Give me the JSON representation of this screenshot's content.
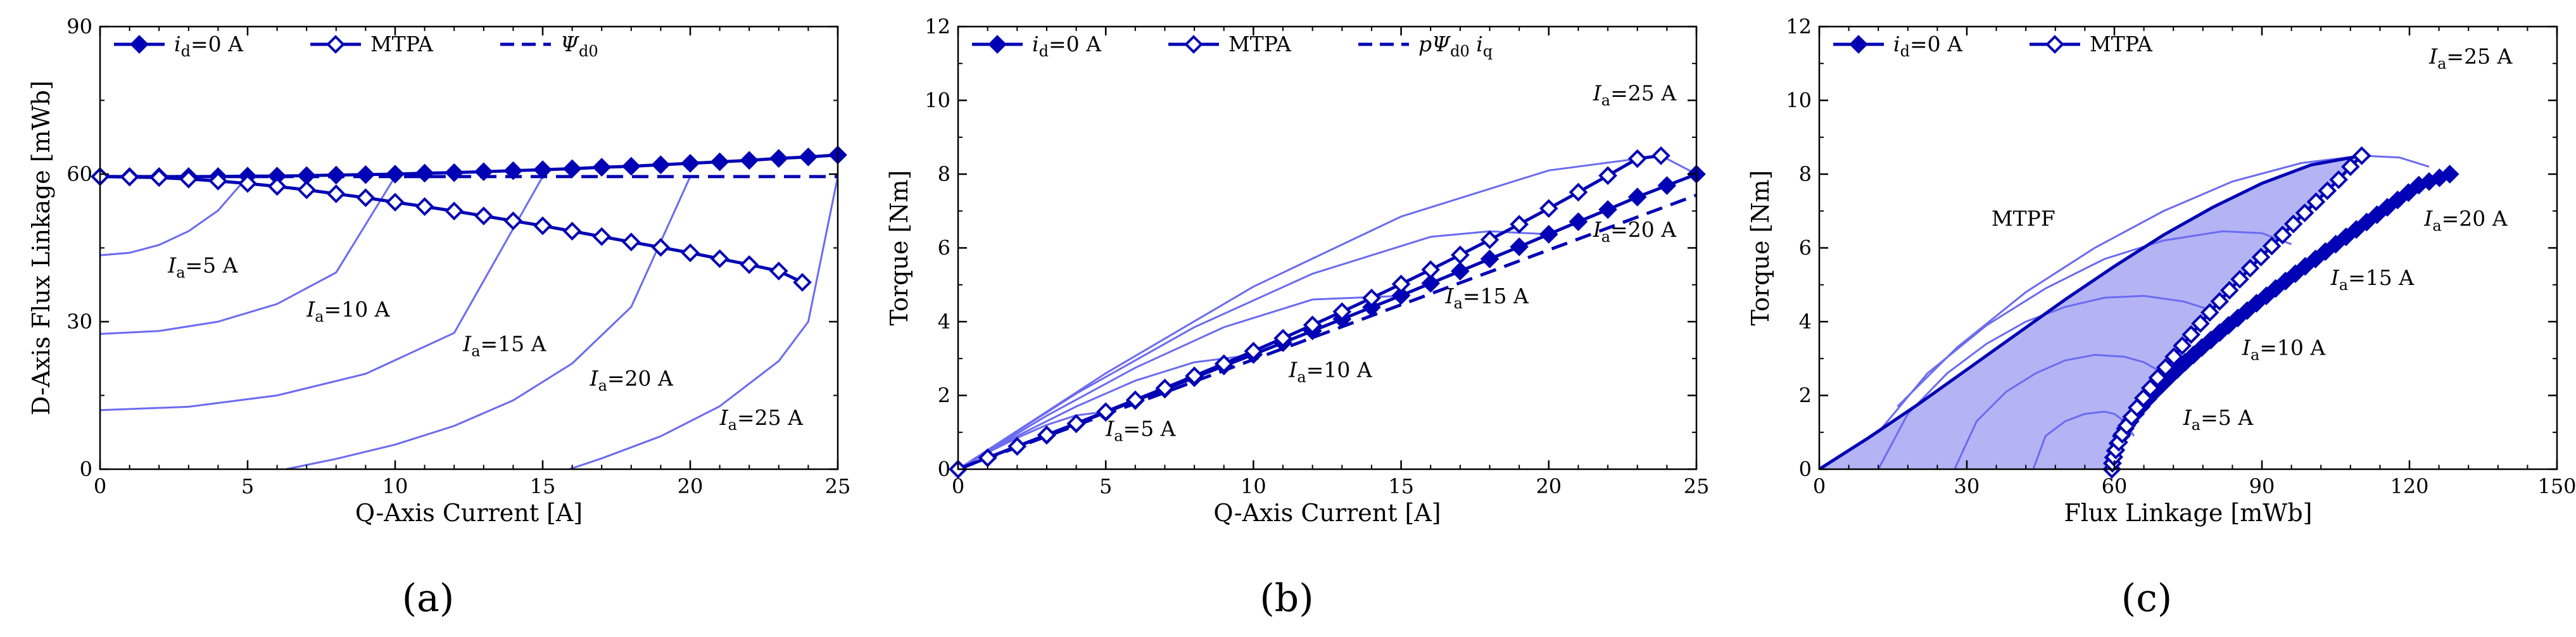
{
  "colors": {
    "main": "#0000b4",
    "light": "#6b6bf0",
    "fill": "#b4b4f5",
    "axis": "#000000"
  },
  "chart_data": [
    {
      "id": "a",
      "type": "line",
      "panel_label": "(a)",
      "xlabel": "Q-Axis Current [A]",
      "ylabel": "D-Axis Flux Linkage [mWb]",
      "xlim": [
        0,
        25
      ],
      "ylim": [
        0,
        90
      ],
      "xticks": [
        0,
        5,
        10,
        15,
        20,
        25
      ],
      "yticks": [
        0,
        30,
        60,
        90
      ],
      "legend": [
        "i_d=0 A",
        "MTPA",
        "Ψ_d0"
      ],
      "series": [
        {
          "name": "i_d=0 A",
          "style": "solid-filled-diamond",
          "x": [
            0,
            1,
            2,
            3,
            4,
            5,
            6,
            7,
            8,
            9,
            10,
            11,
            12,
            13,
            14,
            15,
            16,
            17,
            18,
            19,
            20,
            21,
            22,
            23,
            24,
            25
          ],
          "y": [
            59.5,
            59.5,
            59.5,
            59.5,
            59.5,
            59.6,
            59.6,
            59.7,
            59.8,
            59.9,
            60.0,
            60.2,
            60.3,
            60.5,
            60.7,
            60.9,
            61.1,
            61.4,
            61.6,
            61.9,
            62.2,
            62.5,
            62.8,
            63.2,
            63.5,
            63.9
          ]
        },
        {
          "name": "MTPA",
          "style": "solid-open-diamond",
          "x": [
            0,
            1,
            2,
            3,
            4,
            5,
            6,
            7,
            8,
            9,
            10,
            11,
            12,
            13,
            14,
            15,
            16,
            17,
            18,
            19,
            20,
            21,
            22,
            23,
            23.8
          ],
          "y": [
            59.5,
            59.4,
            59.3,
            59.0,
            58.6,
            58.1,
            57.5,
            56.8,
            56.0,
            55.2,
            54.3,
            53.4,
            52.5,
            51.5,
            50.5,
            49.5,
            48.4,
            47.3,
            46.2,
            45.1,
            44.0,
            42.8,
            41.6,
            40.3,
            38.0
          ]
        },
        {
          "name": "Ψ_d0",
          "style": "dashed",
          "x": [
            0,
            25
          ],
          "y": [
            59.5,
            59.5
          ]
        },
        {
          "name": "I_a=5 A",
          "style": "thin",
          "x": [
            0,
            1,
            2,
            3,
            4,
            5
          ],
          "y": [
            43.5,
            44.0,
            45.6,
            48.4,
            52.6,
            59.5
          ]
        },
        {
          "name": "I_a=10 A",
          "style": "thin",
          "x": [
            0,
            2,
            4,
            6,
            8,
            10
          ],
          "y": [
            27.5,
            28.1,
            30.0,
            33.6,
            40.0,
            59.5
          ]
        },
        {
          "name": "I_a=15 A",
          "style": "thin",
          "x": [
            0,
            3,
            6,
            9,
            12,
            15
          ],
          "y": [
            12.0,
            12.7,
            15.0,
            19.4,
            27.7,
            59.5
          ]
        },
        {
          "name": "I_a=20 A",
          "style": "thin",
          "x": [
            6.3,
            8,
            10,
            12,
            14,
            16,
            18,
            20
          ],
          "y": [
            0,
            2.1,
            5.0,
            8.8,
            14.0,
            21.5,
            33.0,
            59.5
          ]
        },
        {
          "name": "I_a=25 A",
          "style": "thin",
          "x": [
            15.9,
            17,
            19,
            21,
            23,
            24,
            25
          ],
          "y": [
            0,
            2.2,
            6.7,
            12.8,
            22.0,
            30.0,
            59.5
          ]
        }
      ],
      "annotations": [
        {
          "label": "I_a=5 A",
          "x": 2.3,
          "y": 40
        },
        {
          "label": "I_a=10 A",
          "x": 7.0,
          "y": 31
        },
        {
          "label": "I_a=15 A",
          "x": 12.3,
          "y": 24
        },
        {
          "label": "I_a=20 A",
          "x": 16.6,
          "y": 17
        },
        {
          "label": "I_a=25 A",
          "x": 21.0,
          "y": 9
        }
      ]
    },
    {
      "id": "b",
      "type": "line",
      "panel_label": "(b)",
      "xlabel": "Q-Axis Current [A]",
      "ylabel": "Torque [Nm]",
      "xlim": [
        0,
        25
      ],
      "ylim": [
        0,
        12
      ],
      "xticks": [
        0,
        5,
        10,
        15,
        20,
        25
      ],
      "yticks": [
        0,
        2,
        4,
        6,
        8,
        10,
        12
      ],
      "legend": [
        "i_d=0 A",
        "MTPA",
        "pΨ_d0 i_q"
      ],
      "series": [
        {
          "name": "i_d=0 A",
          "style": "solid-filled-diamond",
          "x": [
            0,
            1,
            2,
            3,
            4,
            5,
            6,
            7,
            8,
            9,
            10,
            11,
            12,
            13,
            14,
            15,
            16,
            17,
            18,
            19,
            20,
            21,
            22,
            23,
            24,
            25
          ],
          "y": [
            0,
            0.31,
            0.62,
            0.92,
            1.23,
            1.54,
            1.86,
            2.17,
            2.48,
            2.8,
            3.11,
            3.43,
            3.75,
            4.07,
            4.39,
            4.71,
            5.04,
            5.37,
            5.7,
            6.03,
            6.37,
            6.71,
            7.04,
            7.38,
            7.69,
            8.0
          ]
        },
        {
          "name": "MTPA",
          "style": "solid-open-diamond",
          "x": [
            0,
            1,
            2,
            3,
            4,
            5,
            6,
            7,
            8,
            9,
            10,
            11,
            12,
            13,
            14,
            15,
            16,
            17,
            18,
            19,
            20,
            21,
            22,
            23,
            23.8
          ],
          "y": [
            0,
            0.31,
            0.62,
            0.93,
            1.24,
            1.56,
            1.88,
            2.2,
            2.53,
            2.86,
            3.2,
            3.55,
            3.91,
            4.27,
            4.64,
            5.02,
            5.41,
            5.81,
            6.22,
            6.64,
            7.07,
            7.51,
            7.96,
            8.42,
            8.5
          ]
        },
        {
          "name": "pΨ_d0 i_q",
          "style": "dashed",
          "x": [
            0,
            25
          ],
          "y": [
            0,
            7.43
          ]
        },
        {
          "name": "I_a=5 A",
          "style": "thin",
          "x": [
            0,
            1,
            2,
            3,
            4,
            5
          ],
          "y": [
            0,
            0.45,
            0.85,
            1.2,
            1.46,
            1.56
          ]
        },
        {
          "name": "I_a=10 A",
          "style": "thin",
          "x": [
            0,
            2,
            4,
            6,
            8,
            10
          ],
          "y": [
            0,
            0.9,
            1.7,
            2.4,
            2.9,
            3.1
          ]
        },
        {
          "name": "I_a=15 A",
          "style": "thin",
          "x": [
            0,
            3,
            6,
            9,
            12,
            15
          ],
          "y": [
            0,
            1.45,
            2.75,
            3.85,
            4.6,
            4.7
          ]
        },
        {
          "name": "I_a=20 A",
          "style": "thin",
          "x": [
            0,
            4,
            8,
            12,
            16,
            18,
            20
          ],
          "y": [
            0,
            2.05,
            3.85,
            5.3,
            6.3,
            6.45,
            6.37
          ]
        },
        {
          "name": "I_a=25 A",
          "style": "thin",
          "x": [
            0,
            5,
            10,
            15,
            20,
            23.8,
            25
          ],
          "y": [
            0,
            2.6,
            4.95,
            6.85,
            8.1,
            8.5,
            8.0
          ]
        }
      ],
      "annotations": [
        {
          "label": "I_a=5 A",
          "x": 5.0,
          "y": 0.9
        },
        {
          "label": "I_a=10 A",
          "x": 11.2,
          "y": 2.5
        },
        {
          "label": "I_a=15 A",
          "x": 16.5,
          "y": 4.5
        },
        {
          "label": "I_a=20 A",
          "x": 21.5,
          "y": 6.3
        },
        {
          "label": "I_a=25 A",
          "x": 21.5,
          "y": 10.0
        }
      ]
    },
    {
      "id": "c",
      "type": "line",
      "panel_label": "(c)",
      "xlabel": "Flux Linkage [mWb]",
      "ylabel": "Torque [Nm]",
      "xlim": [
        0,
        150
      ],
      "ylim": [
        0,
        12
      ],
      "xticks": [
        0,
        30,
        60,
        90,
        120,
        150
      ],
      "yticks": [
        0,
        2,
        4,
        6,
        8,
        10,
        12
      ],
      "legend": [
        "i_d=0 A",
        "MTPA"
      ],
      "series": [
        {
          "name": "i_d=0 A",
          "style": "solid-filled-diamond",
          "x": [
            59.5,
            59.6,
            59.8,
            60.2,
            60.7,
            61.4,
            62.2,
            63.2,
            64.3,
            65.5,
            66.8,
            68.2,
            69.7,
            71.2,
            72.8,
            74.4,
            76.1,
            77.8,
            79.6,
            81.4,
            83.2,
            85.1,
            87.0,
            88.9,
            90.9,
            92.8,
            94.8,
            96.8,
            98.8,
            100.9,
            102.9,
            105.0,
            107.1,
            109.2,
            111.3,
            113.4,
            115.5,
            117.6,
            119.8,
            121.9,
            124.0,
            126.1,
            128.2
          ],
          "y": [
            0,
            0.16,
            0.32,
            0.5,
            0.7,
            0.9,
            1.1,
            1.3,
            1.5,
            1.7,
            1.9,
            2.1,
            2.3,
            2.5,
            2.7,
            2.9,
            3.1,
            3.3,
            3.5,
            3.7,
            3.9,
            4.1,
            4.3,
            4.5,
            4.7,
            4.9,
            5.1,
            5.3,
            5.5,
            5.7,
            5.9,
            6.1,
            6.3,
            6.5,
            6.7,
            6.9,
            7.1,
            7.3,
            7.5,
            7.7,
            7.8,
            7.9,
            8.0
          ]
        },
        {
          "name": "MTPA",
          "style": "solid-open-diamond",
          "x": [
            59.5,
            59.6,
            59.9,
            60.3,
            60.9,
            61.6,
            62.5,
            63.5,
            64.6,
            65.9,
            67.3,
            68.8,
            70.4,
            72.1,
            73.8,
            75.6,
            77.5,
            79.4,
            81.4,
            83.4,
            85.5,
            87.6,
            89.8,
            92.0,
            94.2,
            96.4,
            98.7,
            101.0,
            103.3,
            105.6,
            108.0,
            110.3
          ],
          "y": [
            0,
            0.16,
            0.33,
            0.52,
            0.73,
            0.95,
            1.18,
            1.42,
            1.67,
            1.93,
            2.2,
            2.48,
            2.76,
            3.05,
            3.35,
            3.65,
            3.95,
            4.25,
            4.55,
            4.85,
            5.15,
            5.45,
            5.75,
            6.05,
            6.35,
            6.65,
            6.95,
            7.25,
            7.55,
            7.85,
            8.2,
            8.5
          ]
        },
        {
          "name": "MTPF",
          "style": "solid-thick-filled",
          "x": [
            0,
            10,
            20,
            30,
            40,
            50,
            60,
            70,
            80,
            90,
            100,
            110.3
          ],
          "y": [
            0,
            0.85,
            1.75,
            2.7,
            3.65,
            4.6,
            5.5,
            6.35,
            7.1,
            7.75,
            8.25,
            8.5
          ]
        },
        {
          "name": "I_a=5 A",
          "style": "thin",
          "x": [
            43.5,
            46,
            50,
            54,
            58,
            60,
            62,
            64
          ],
          "y": [
            0,
            0.9,
            1.3,
            1.5,
            1.56,
            1.5,
            1.3,
            0.9
          ]
        },
        {
          "name": "I_a=10 A",
          "style": "thin",
          "x": [
            27.5,
            32,
            38,
            44,
            50,
            56,
            62,
            66,
            70
          ],
          "y": [
            0,
            1.3,
            2.1,
            2.6,
            2.95,
            3.1,
            3.05,
            2.9,
            2.6
          ]
        },
        {
          "name": "I_a=15 A",
          "style": "thin",
          "x": [
            12,
            18,
            26,
            34,
            42,
            50,
            58,
            66,
            74,
            80
          ],
          "y": [
            0,
            1.5,
            2.6,
            3.4,
            4.0,
            4.4,
            4.65,
            4.7,
            4.55,
            4.3
          ]
        },
        {
          "name": "I_a=20 A",
          "style": "thin",
          "x": [
            12,
            22,
            34,
            46,
            58,
            70,
            82,
            90,
            96
          ],
          "y": [
            1.0,
            2.6,
            3.9,
            4.9,
            5.7,
            6.2,
            6.45,
            6.4,
            6.1
          ]
        },
        {
          "name": "I_a=25 A",
          "style": "thin",
          "x": [
            15.9,
            28,
            42,
            56,
            70,
            84,
            98,
            110.3,
            118,
            124
          ],
          "y": [
            1.7,
            3.3,
            4.8,
            6.0,
            7.0,
            7.8,
            8.3,
            8.5,
            8.45,
            8.2
          ]
        }
      ],
      "annotations": [
        {
          "label": "MTPF",
          "x": 35,
          "y": 6.6
        },
        {
          "label": "I_a=5 A",
          "x": 74,
          "y": 1.2
        },
        {
          "label": "I_a=10 A",
          "x": 86,
          "y": 3.1
        },
        {
          "label": "I_a=15 A",
          "x": 104,
          "y": 5.0
        },
        {
          "label": "I_a=20 A",
          "x": 123,
          "y": 6.6
        },
        {
          "label": "I_a=25 A",
          "x": 124,
          "y": 11.0
        }
      ]
    }
  ]
}
